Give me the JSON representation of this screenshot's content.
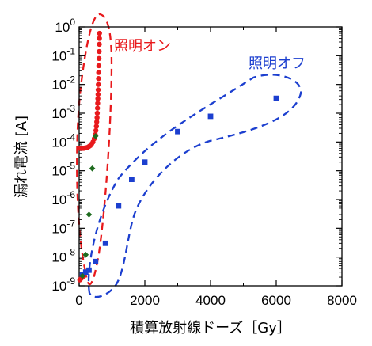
{
  "chart_data": {
    "type": "scatter",
    "title": "",
    "xlabel": "積算放射線ドーズ［Gy］",
    "ylabel": "漏れ電流 [A]",
    "xlim": [
      0,
      8000
    ],
    "ylim": [
      1e-09,
      1
    ],
    "yscale": "log",
    "x_ticks": [
      "0",
      "2000",
      "4000",
      "6000",
      "8000"
    ],
    "y_ticks": [
      {
        "base": "10",
        "exp": "0"
      },
      {
        "base": "10",
        "exp": "-1"
      },
      {
        "base": "10",
        "exp": "-2"
      },
      {
        "base": "10",
        "exp": "-3"
      },
      {
        "base": "10",
        "exp": "-4"
      },
      {
        "base": "10",
        "exp": "-5"
      },
      {
        "base": "10",
        "exp": "-6"
      },
      {
        "base": "10",
        "exp": "-7"
      },
      {
        "base": "10",
        "exp": "-8"
      },
      {
        "base": "10",
        "exp": "-9"
      }
    ],
    "grid": false,
    "series": [
      {
        "name": "照明オン",
        "color": "#e8191c",
        "marker": "circle",
        "points": [
          [
            20,
            1.6e-09
          ],
          [
            60,
            1.8e-09
          ],
          [
            100,
            2e-09
          ],
          [
            20,
            6e-05
          ],
          [
            60,
            6e-05
          ],
          [
            100,
            6e-05
          ],
          [
            140,
            6e-05
          ],
          [
            180,
            6.2e-05
          ],
          [
            220,
            6.3e-05
          ],
          [
            260,
            6.5e-05
          ],
          [
            300,
            7e-05
          ],
          [
            340,
            7.5e-05
          ],
          [
            380,
            8.5e-05
          ],
          [
            420,
            0.0001
          ],
          [
            460,
            0.00013
          ],
          [
            490,
            0.00018
          ],
          [
            510,
            0.00025
          ],
          [
            525,
            0.00035
          ],
          [
            535,
            0.0005
          ],
          [
            545,
            0.0007
          ],
          [
            552,
            0.001
          ],
          [
            558,
            0.0015
          ],
          [
            564,
            0.0022
          ],
          [
            570,
            0.0032
          ],
          [
            575,
            0.0045
          ],
          [
            580,
            0.0065
          ],
          [
            585,
            0.01
          ],
          [
            590,
            0.016
          ],
          [
            595,
            0.026
          ],
          [
            600,
            0.045
          ],
          [
            605,
            0.08
          ],
          [
            610,
            0.14
          ],
          [
            615,
            0.25
          ],
          [
            618,
            0.4
          ],
          [
            620,
            0.6
          ]
        ]
      },
      {
        "name": "照明オフ",
        "color": "#1c3fcf",
        "marker": "square",
        "points": [
          [
            100,
            2.5e-09
          ],
          [
            200,
            3e-09
          ],
          [
            300,
            3.5e-09
          ],
          [
            500,
            7e-09
          ],
          [
            800,
            3e-08
          ],
          [
            1200,
            6e-07
          ],
          [
            1600,
            5e-06
          ],
          [
            2000,
            2e-05
          ],
          [
            3000,
            0.00023
          ],
          [
            4000,
            0.00078
          ],
          [
            6000,
            0.0033
          ]
        ]
      },
      {
        "name": "",
        "color": "#1e6b1e",
        "marker": "diamond",
        "points": [
          [
            100,
            2.2e-09
          ],
          [
            200,
            1.2e-08
          ],
          [
            300,
            3e-07
          ],
          [
            400,
            1.2e-05
          ],
          [
            500,
            0.00016
          ]
        ]
      }
    ],
    "annotations": [
      {
        "text": "照明オン",
        "color": "#e8191c"
      },
      {
        "text": "照明オフ",
        "color": "#1c3fcf"
      }
    ]
  }
}
